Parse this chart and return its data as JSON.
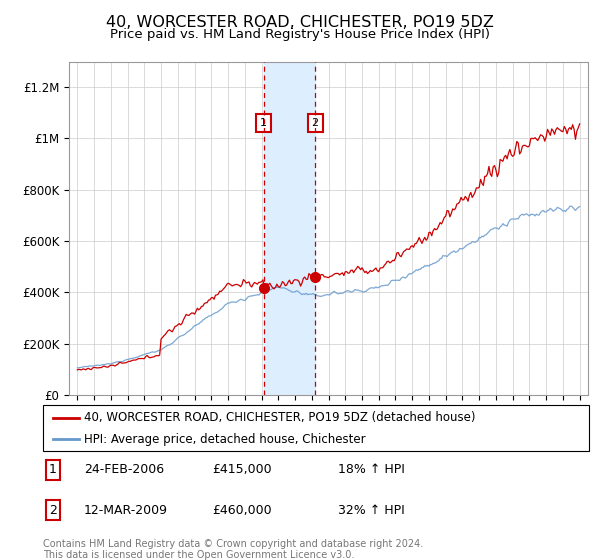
{
  "title": "40, WORCESTER ROAD, CHICHESTER, PO19 5DZ",
  "subtitle": "Price paid vs. HM Land Registry's House Price Index (HPI)",
  "title_fontsize": 11.5,
  "subtitle_fontsize": 9.5,
  "legend_label_red": "40, WORCESTER ROAD, CHICHESTER, PO19 5DZ (detached house)",
  "legend_label_blue": "HPI: Average price, detached house, Chichester",
  "sale1_date": "24-FEB-2006",
  "sale1_price": "£415,000",
  "sale1_pct": "18%",
  "sale2_date": "12-MAR-2009",
  "sale2_price": "£460,000",
  "sale2_pct": "32%",
  "sale1_year": 2006.12,
  "sale2_year": 2009.2,
  "sale1_value": 415000,
  "sale2_value": 460000,
  "footer": "Contains HM Land Registry data © Crown copyright and database right 2024.\nThis data is licensed under the Open Government Licence v3.0.",
  "red_color": "#cc0000",
  "blue_color": "#6699cc",
  "shade_color": "#ddeeff",
  "marker_box_color": "#cc0000",
  "background_color": "#ffffff",
  "grid_color": "#cccccc",
  "ylim": [
    0,
    1300000
  ],
  "xlim_start": 1994.5,
  "xlim_end": 2025.5
}
